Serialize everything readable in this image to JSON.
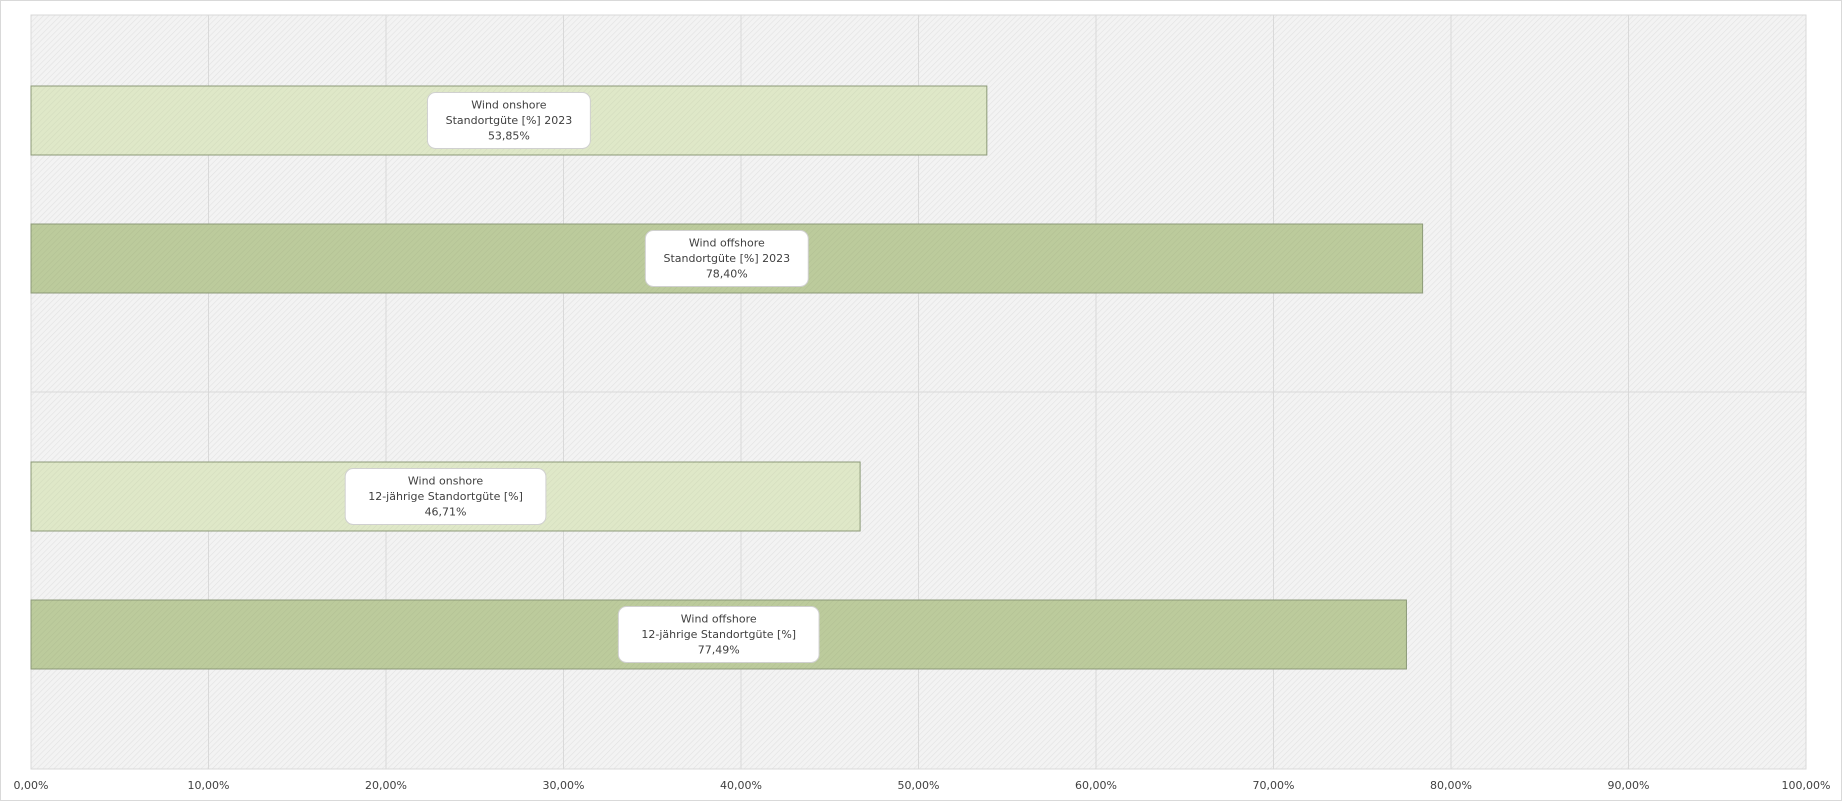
{
  "chart_data": {
    "type": "bar",
    "orientation": "horizontal",
    "xlim": [
      0,
      100
    ],
    "x_ticks": [
      0,
      10,
      20,
      30,
      40,
      50,
      60,
      70,
      80,
      90,
      100
    ],
    "x_tick_labels": [
      "0,00%",
      "10,00%",
      "20,00%",
      "30,00%",
      "40,00%",
      "50,00%",
      "60,00%",
      "70,00%",
      "80,00%",
      "90,00%",
      "100,00%"
    ],
    "grid": true,
    "groups": 2,
    "bars": [
      {
        "group": 0,
        "series": "Wind onshore",
        "category": "Standortgüte [%] 2023",
        "value": 53.85,
        "label_lines": [
          "Wind onshore",
          "Standortgüte  [%]  2023",
          "53,85%"
        ],
        "color": "#dfe8c8"
      },
      {
        "group": 0,
        "series": "Wind offshore",
        "category": "Standortgüte [%] 2023",
        "value": 78.4,
        "label_lines": [
          "Wind offshore",
          "Standortgüte  [%]  2023",
          "78,40%"
        ],
        "color": "#bccb9c"
      },
      {
        "group": 1,
        "series": "Wind onshore",
        "category": "12-jährige Standortgüte [%]",
        "value": 46.71,
        "label_lines": [
          "Wind onshore",
          "12-jährige  Standortgüte  [%]",
          "46,71%"
        ],
        "color": "#dfe8c8"
      },
      {
        "group": 1,
        "series": "Wind offshore",
        "category": "12-jährige Standortgüte [%]",
        "value": 77.49,
        "label_lines": [
          "Wind offshore",
          "12-jährige  Standortgüte  [%]",
          "77,49%"
        ],
        "color": "#bccb9c"
      }
    ],
    "colors": {
      "onshore": "#dfe8c8",
      "offshore": "#bccb9c",
      "bar_border": "#8c9a78",
      "grid": "#d9d9d9",
      "plot_background": "#f4f4f4"
    }
  }
}
